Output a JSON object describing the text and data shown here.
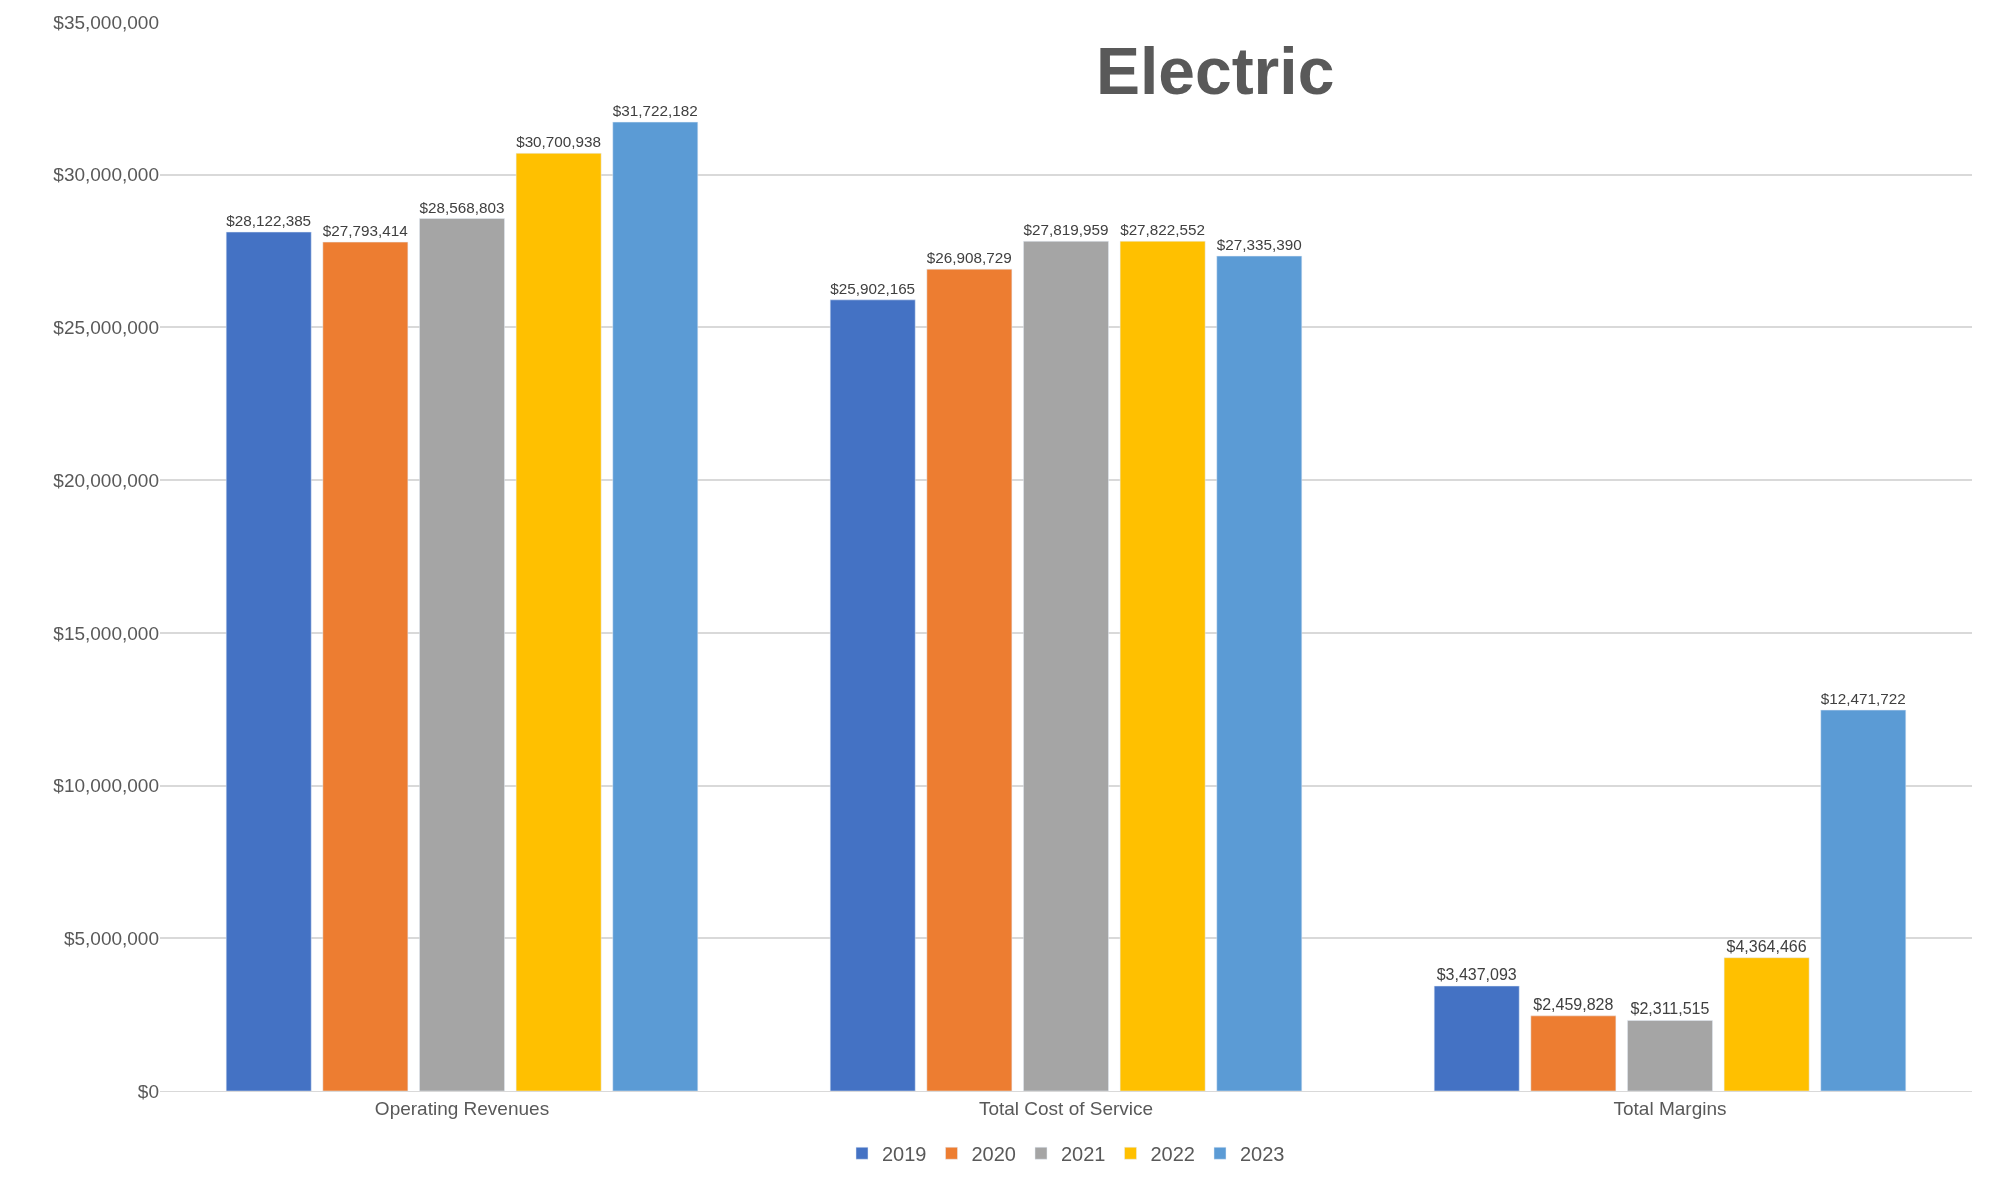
{
  "chart_data": {
    "type": "bar",
    "title": "Electric",
    "categories": [
      "Operating Revenues",
      "Total Cost of Service",
      "Total Margins"
    ],
    "series": [
      {
        "name": "2019",
        "color": "#4472c4",
        "values": [
          28122385,
          25902165,
          3437093
        ],
        "value_labels": [
          "$28,122,385",
          "$25,902,165",
          "$3,437,093"
        ]
      },
      {
        "name": "2020",
        "color": "#ed7d31",
        "values": [
          27793414,
          26908729,
          2459828
        ],
        "value_labels": [
          "$27,793,414",
          "$26,908,729",
          "$2,459,828"
        ]
      },
      {
        "name": "2021",
        "color": "#a5a5a5",
        "values": [
          28568803,
          27819959,
          2311515
        ],
        "value_labels": [
          "$28,568,803",
          "$27,819,959",
          "$2,311,515"
        ]
      },
      {
        "name": "2022",
        "color": "#ffc000",
        "values": [
          30700938,
          27822552,
          4364466
        ],
        "value_labels": [
          "$30,700,938",
          "$27,822,552",
          "$4,364,466"
        ]
      },
      {
        "name": "2023",
        "color": "#5b9bd5",
        "values": [
          31722182,
          27335390,
          12471722
        ],
        "value_labels": [
          "$31,722,182",
          "$27,335,390",
          "$12,471,722"
        ]
      }
    ],
    "ylim": [
      0,
      35000000
    ],
    "yticks": [
      {
        "value": 0,
        "label": "$0"
      },
      {
        "value": 5000000,
        "label": "$5,000,000"
      },
      {
        "value": 10000000,
        "label": "$10,000,000"
      },
      {
        "value": 15000000,
        "label": "$15,000,000"
      },
      {
        "value": 20000000,
        "label": "$20,000,000"
      },
      {
        "value": 25000000,
        "label": "$25,000,000"
      },
      {
        "value": 30000000,
        "label": "$30,000,000"
      },
      {
        "value": 35000000,
        "label": "$35,000,000"
      }
    ],
    "grid": "y",
    "legend": "bottom"
  }
}
